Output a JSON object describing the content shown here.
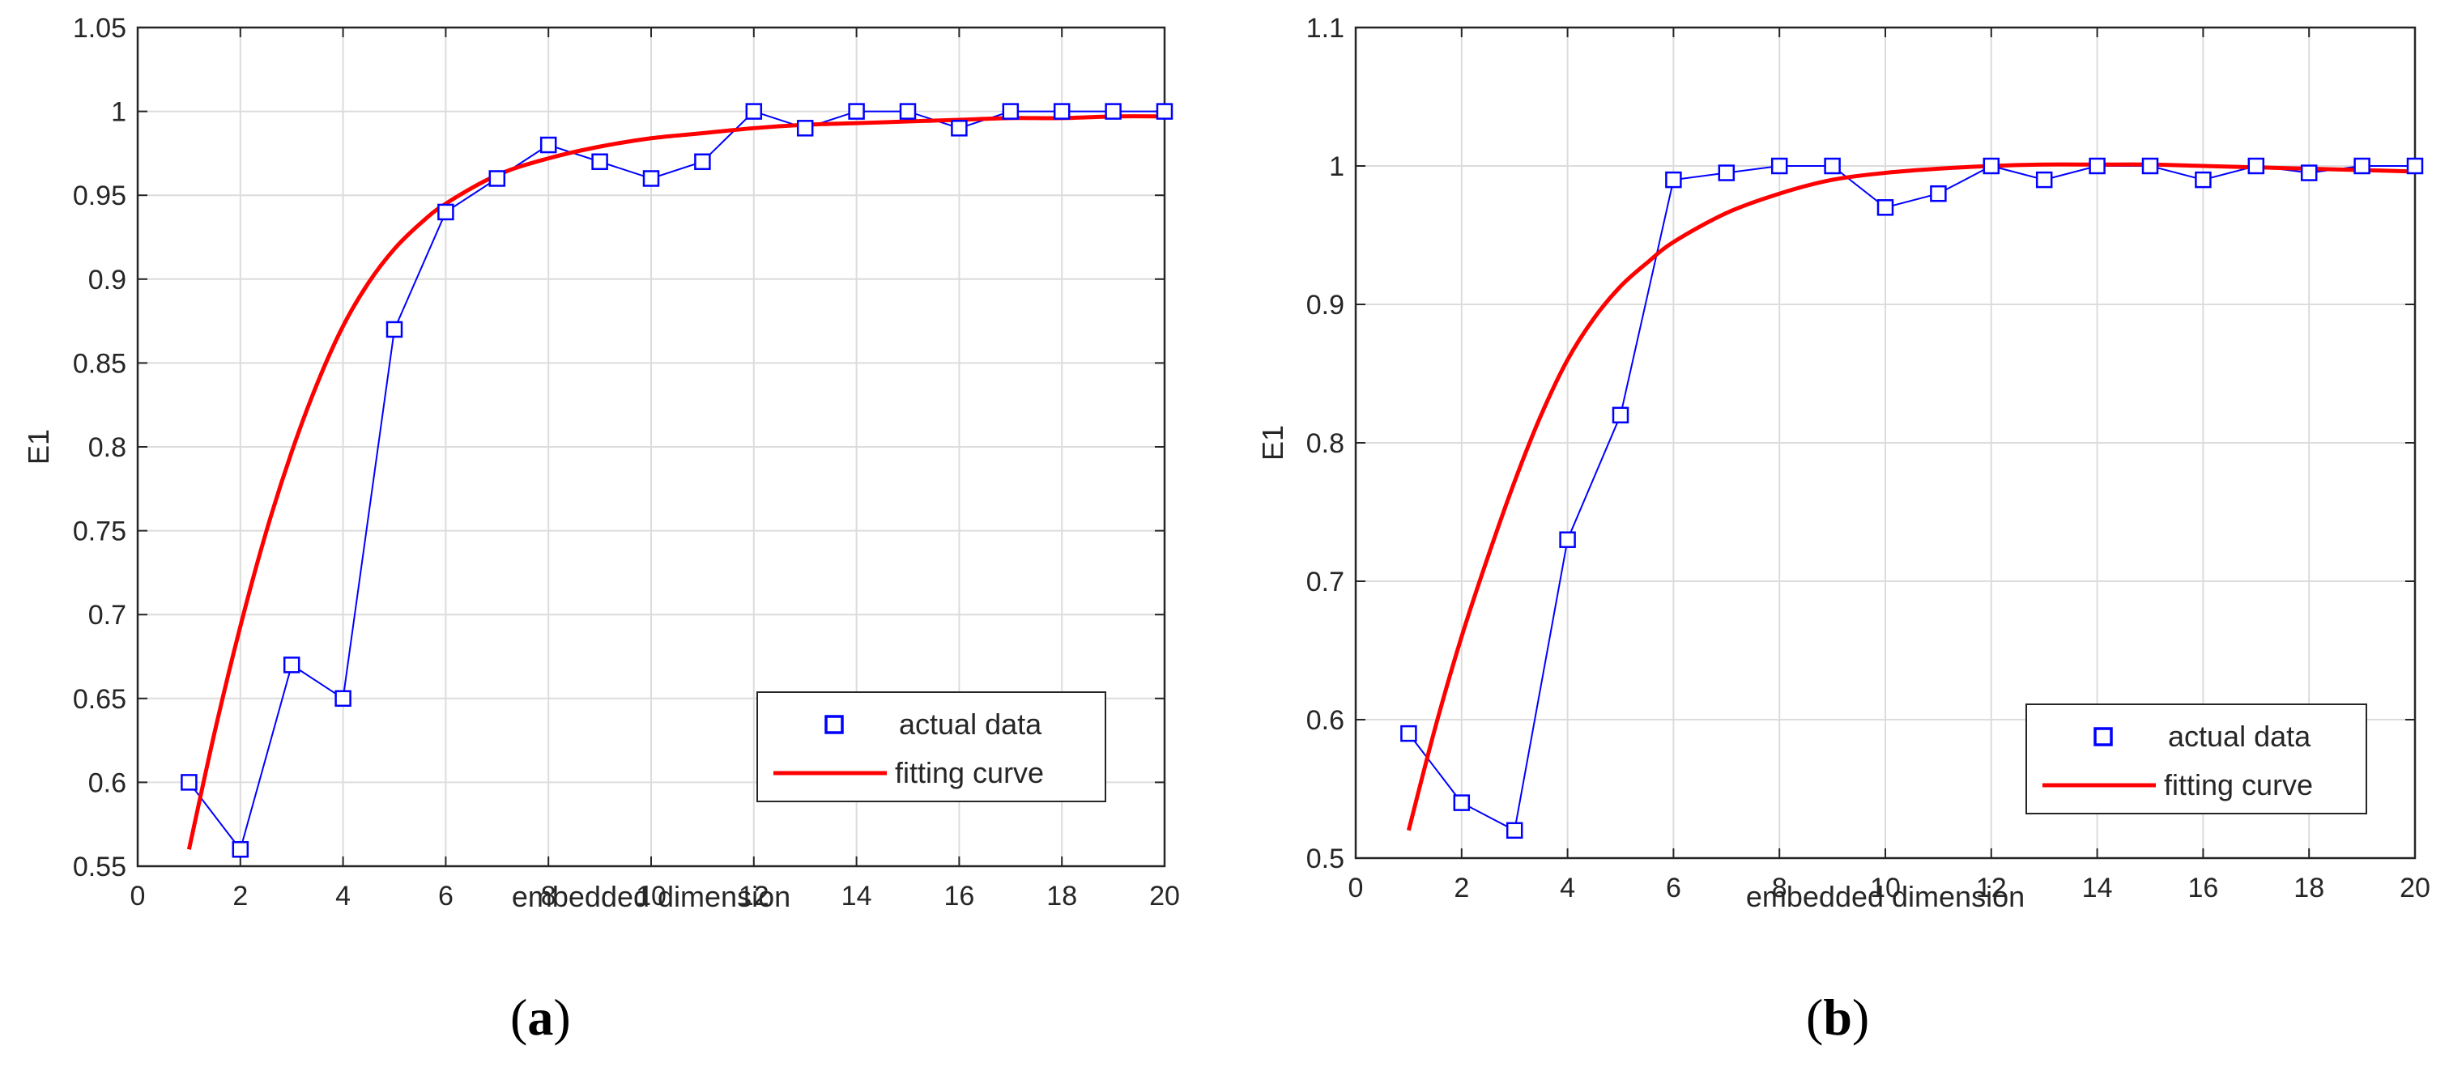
{
  "colors": {
    "actual": "#0000ff",
    "fit": "#ff0000",
    "grid": "#dcdcdc",
    "axis": "#262626"
  },
  "panels": [
    {
      "label_open": "(",
      "label_letter": "a",
      "label_close": ")",
      "legend": {
        "actual_label": "actual data",
        "fit_label": "fitting curve",
        "position": "bottom-right"
      }
    },
    {
      "label_open": "(",
      "label_letter": "b",
      "label_close": ")",
      "legend": {
        "actual_label": "actual data",
        "fit_label": "fitting curve",
        "position": "bottom-right"
      }
    }
  ],
  "chart_data": [
    {
      "type": "line",
      "title": "",
      "xlabel": "embedded dimension",
      "ylabel": "E1",
      "xlim": [
        0,
        20
      ],
      "ylim": [
        0.55,
        1.05
      ],
      "xticks": [
        "0",
        "2",
        "4",
        "6",
        "8",
        "10",
        "12",
        "14",
        "16",
        "18",
        "20"
      ],
      "yticks": [
        "0.55",
        "0.6",
        "0.65",
        "0.7",
        "0.75",
        "0.8",
        "0.85",
        "0.9",
        "0.95",
        "1",
        "1.05"
      ],
      "grid": true,
      "series": [
        {
          "name": "actual data",
          "marker": "square",
          "x": [
            1,
            2,
            3,
            4,
            5,
            6,
            7,
            8,
            9,
            10,
            11,
            12,
            13,
            14,
            15,
            16,
            17,
            18,
            19,
            20
          ],
          "y": [
            0.6,
            0.56,
            0.67,
            0.65,
            0.87,
            0.94,
            0.96,
            0.98,
            0.97,
            0.96,
            0.97,
            1.0,
            0.99,
            1.0,
            1.0,
            0.99,
            1.0,
            1.0,
            1.0,
            1.0
          ]
        },
        {
          "name": "fitting curve",
          "marker": "none",
          "x": [
            1,
            1.5,
            2,
            2.5,
            3,
            3.5,
            4,
            4.5,
            5,
            5.5,
            6,
            7,
            8,
            9,
            10,
            11,
            12,
            13,
            14,
            15,
            16,
            17,
            18,
            19,
            20
          ],
          "y": [
            0.56,
            0.63,
            0.693,
            0.749,
            0.797,
            0.838,
            0.872,
            0.898,
            0.918,
            0.933,
            0.945,
            0.962,
            0.972,
            0.979,
            0.984,
            0.987,
            0.99,
            0.992,
            0.993,
            0.994,
            0.995,
            0.996,
            0.996,
            0.997,
            0.997
          ]
        }
      ]
    },
    {
      "type": "line",
      "title": "",
      "xlabel": "embedded dimension",
      "ylabel": "E1",
      "xlim": [
        0,
        20
      ],
      "ylim": [
        0.5,
        1.1
      ],
      "xticks": [
        "0",
        "2",
        "4",
        "6",
        "8",
        "10",
        "12",
        "14",
        "16",
        "18",
        "20"
      ],
      "yticks": [
        "0.5",
        "0.6",
        "0.7",
        "0.8",
        "0.9",
        "1",
        "1.1"
      ],
      "grid": true,
      "series": [
        {
          "name": "actual data",
          "marker": "square",
          "x": [
            1,
            2,
            3,
            4,
            5,
            6,
            7,
            8,
            9,
            10,
            11,
            12,
            13,
            14,
            15,
            16,
            17,
            18,
            19,
            20
          ],
          "y": [
            0.59,
            0.54,
            0.52,
            0.73,
            0.82,
            0.99,
            0.995,
            1.0,
            1.0,
            0.97,
            0.98,
            1.0,
            0.99,
            1.0,
            1.0,
            0.99,
            1.0,
            0.995,
            1.0,
            1.0
          ]
        },
        {
          "name": "fitting curve",
          "marker": "none",
          "x": [
            1,
            1.5,
            2,
            2.5,
            3,
            3.5,
            4,
            4.5,
            5,
            5.5,
            6,
            7,
            8,
            9,
            10,
            11,
            12,
            13,
            14,
            15,
            16,
            17,
            18,
            19,
            20
          ],
          "y": [
            0.52,
            0.594,
            0.66,
            0.718,
            0.772,
            0.82,
            0.86,
            0.89,
            0.913,
            0.93,
            0.945,
            0.966,
            0.98,
            0.99,
            0.995,
            0.998,
            1.0,
            1.001,
            1.001,
            1.001,
            1.0,
            0.999,
            0.998,
            0.997,
            0.996
          ]
        }
      ]
    }
  ]
}
